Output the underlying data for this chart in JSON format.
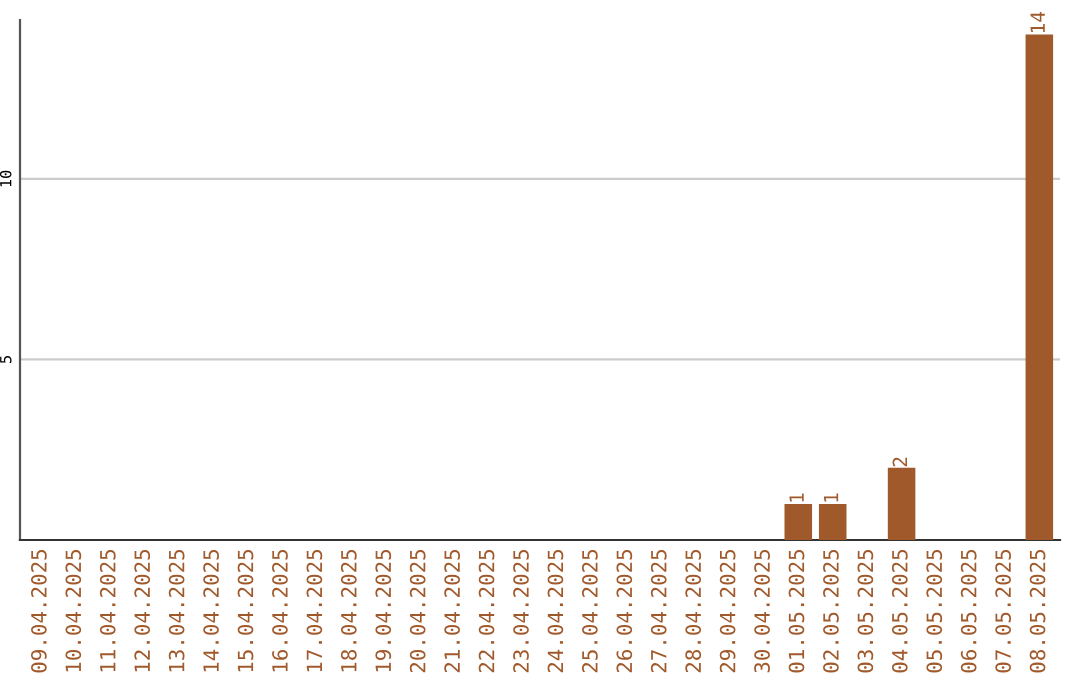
{
  "chart_data": {
    "type": "bar",
    "categories": [
      "09.04.2025",
      "10.04.2025",
      "11.04.2025",
      "12.04.2025",
      "13.04.2025",
      "14.04.2025",
      "15.04.2025",
      "16.04.2025",
      "17.04.2025",
      "18.04.2025",
      "19.04.2025",
      "20.04.2025",
      "21.04.2025",
      "22.04.2025",
      "23.04.2025",
      "24.04.2025",
      "25.04.2025",
      "26.04.2025",
      "27.04.2025",
      "28.04.2025",
      "29.04.2025",
      "30.04.2025",
      "01.05.2025",
      "02.05.2025",
      "03.05.2025",
      "04.05.2025",
      "05.05.2025",
      "06.05.2025",
      "07.05.2025",
      "08.05.2025"
    ],
    "values": [
      0,
      0,
      0,
      0,
      0,
      0,
      0,
      0,
      0,
      0,
      0,
      0,
      0,
      0,
      0,
      0,
      0,
      0,
      0,
      0,
      0,
      0,
      1,
      1,
      0,
      2,
      0,
      0,
      0,
      14
    ],
    "value_labels": [
      null,
      null,
      null,
      null,
      null,
      null,
      null,
      null,
      null,
      null,
      null,
      null,
      null,
      null,
      null,
      null,
      null,
      null,
      null,
      null,
      null,
      null,
      "1",
      "1",
      null,
      "2",
      null,
      null,
      null,
      "14"
    ],
    "color": "#a0592b",
    "ylim": [
      0,
      14.4
    ],
    "yticks": [
      5,
      10
    ],
    "grid": "y"
  }
}
